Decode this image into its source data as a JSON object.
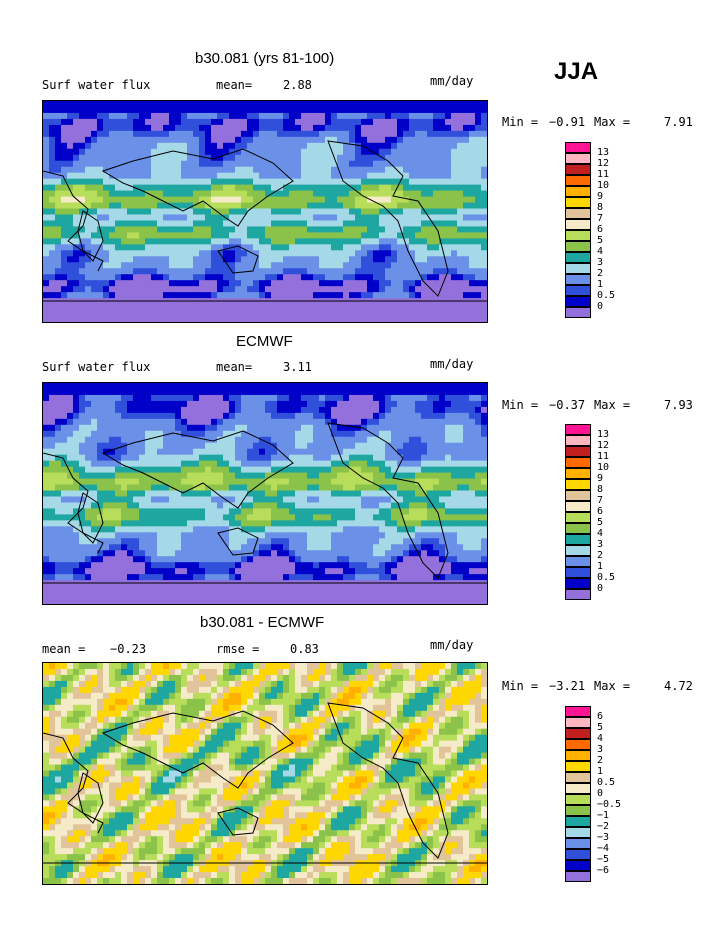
{
  "header": {
    "season": "JJA"
  },
  "colors": {
    "abs_scale": [
      "#9370db",
      "#0000c8",
      "#3050dc",
      "#6b90e8",
      "#a6d9e8",
      "#1ea7a0",
      "#8bc34a",
      "#b8dd5a",
      "#f5ebc8",
      "#e2c49a",
      "#ffd700",
      "#ffb000",
      "#ff6a00",
      "#c22020",
      "#ffb6c1",
      "#ff1493"
    ],
    "diff_scale": [
      "#9370db",
      "#0000c8",
      "#3050dc",
      "#6b90e8",
      "#a6d9e8",
      "#1ea7a0",
      "#8bc34a",
      "#b8dd5a",
      "#f5ebc8",
      "#e2c49a",
      "#ffd700",
      "#ffb000",
      "#ff6a00",
      "#c22020",
      "#ffb6c1",
      "#ff1493"
    ]
  },
  "panels": [
    {
      "title": "b30.081 (yrs 81-100)",
      "left_label": "Surf water flux",
      "stat_label": "mean=",
      "stat_value": "2.88",
      "units": "mm/day",
      "min_label": "Min =",
      "min_value": "−0.91",
      "max_label": "Max =",
      "max_value": "7.91",
      "colorbar_labels": [
        "0",
        "0.5",
        "1",
        "2",
        "3",
        "4",
        "5",
        "6",
        "7",
        "8",
        "9",
        "10",
        "11",
        "12",
        "13"
      ]
    },
    {
      "title": "ECMWF",
      "left_label": "Surf water flux",
      "stat_label": "mean=",
      "stat_value": "3.11",
      "units": "mm/day",
      "min_label": "Min =",
      "min_value": "−0.37",
      "max_label": "Max =",
      "max_value": "7.93",
      "colorbar_labels": [
        "0",
        "0.5",
        "1",
        "2",
        "3",
        "4",
        "5",
        "6",
        "7",
        "8",
        "9",
        "10",
        "11",
        "12",
        "13"
      ]
    },
    {
      "title": "b30.081 - ECMWF",
      "left_label": "mean =",
      "left_value": "−0.23",
      "stat_label": "rmse =",
      "stat_value": "0.83",
      "units": "mm/day",
      "min_label": "Min =",
      "min_value": "−3.21",
      "max_label": "Max =",
      "max_value": "4.72",
      "colorbar_labels": [
        "−6",
        "−5",
        "−4",
        "−3",
        "−2",
        "−1",
        "−0.5",
        "0",
        "0.5",
        "1",
        "2",
        "3",
        "4",
        "5",
        "6"
      ]
    }
  ],
  "chart_data": [
    {
      "type": "heatmap",
      "title": "b30.081 (yrs 81-100)",
      "field": "Surf water flux",
      "units": "mm/day",
      "mean": 2.88,
      "min": -0.91,
      "max": 7.91,
      "levels": [
        0,
        0.5,
        1,
        2,
        3,
        4,
        5,
        6,
        7,
        8,
        9,
        10,
        11,
        12,
        13
      ]
    },
    {
      "type": "heatmap",
      "title": "ECMWF",
      "field": "Surf water flux",
      "units": "mm/day",
      "mean": 3.11,
      "min": -0.37,
      "max": 7.93,
      "levels": [
        0,
        0.5,
        1,
        2,
        3,
        4,
        5,
        6,
        7,
        8,
        9,
        10,
        11,
        12,
        13
      ]
    },
    {
      "type": "heatmap",
      "title": "b30.081 - ECMWF",
      "units": "mm/day",
      "mean": -0.23,
      "rmse": 0.83,
      "min": -3.21,
      "max": 4.72,
      "levels": [
        -6,
        -5,
        -4,
        -3,
        -2,
        -1,
        -0.5,
        0,
        0.5,
        1,
        2,
        3,
        4,
        5,
        6
      ]
    }
  ]
}
